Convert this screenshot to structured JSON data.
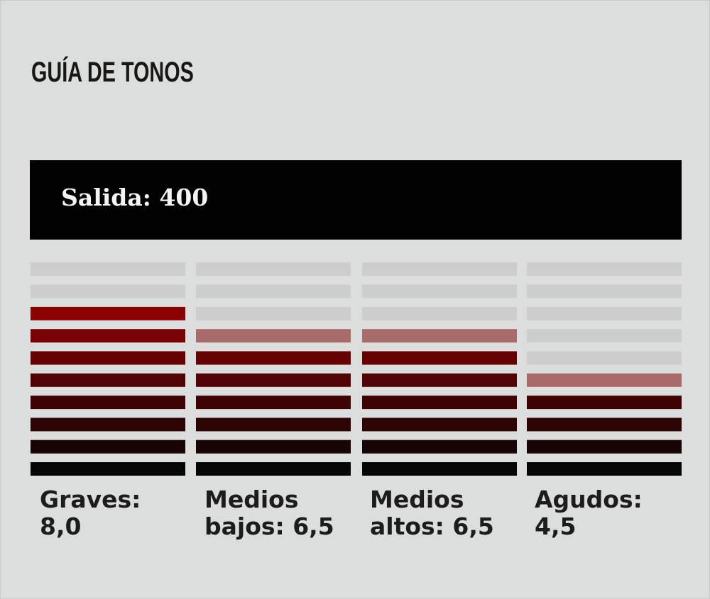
{
  "title": "GUÍA DE TONOS",
  "output": "Salida: 400",
  "chart_data": {
    "type": "bar",
    "orientation": "vertical-segmented",
    "segments_per_bar": 10,
    "categories": [
      "Graves: 8,0",
      "Medios bajos: 6,5",
      "Medios altos: 6,5",
      "Agudos: 4,5"
    ],
    "values": [
      8.0,
      6.5,
      6.5,
      4.5
    ],
    "ylim": [
      0,
      10
    ],
    "grid": false,
    "colors": {
      "inactive": "#cdcdcd",
      "active_top": "#b30000",
      "active_bottom": "#050505",
      "half_segment": "#a96a6a"
    }
  },
  "columns": [
    {
      "line1": "Graves:",
      "line2": "8,0"
    },
    {
      "line1": "Medios",
      "line2": "bajos: 6,5"
    },
    {
      "line1": "Medios",
      "line2": "altos: 6,5"
    },
    {
      "line1": "Agudos:",
      "line2": "4,5"
    }
  ]
}
